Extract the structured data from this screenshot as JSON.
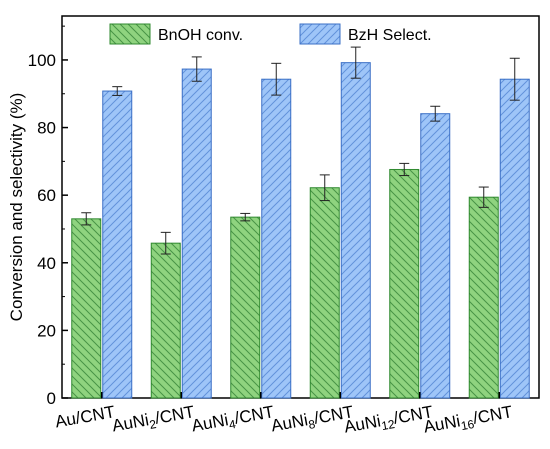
{
  "chart_data": {
    "type": "bar",
    "categories": [
      {
        "base": "Au",
        "sub": "",
        "suffix": "/CNT"
      },
      {
        "base": "AuNi",
        "sub": "2",
        "suffix": "/CNT"
      },
      {
        "base": "AuNi",
        "sub": "4",
        "suffix": "/CNT"
      },
      {
        "base": "AuNi",
        "sub": "8",
        "suffix": "/CNT"
      },
      {
        "base": "AuNi",
        "sub": "12",
        "suffix": "/CNT"
      },
      {
        "base": "AuNi",
        "sub": "16",
        "suffix": "/CNT"
      }
    ],
    "series": [
      {
        "name": "BnOH conv.",
        "color": "#8fd37f",
        "stroke": "#2f8a2f",
        "hatch": "backslash",
        "values": [
          53,
          45.8,
          53.5,
          62.2,
          67.6,
          59.4
        ],
        "errors": [
          1.8,
          3.2,
          1.1,
          3.8,
          1.8,
          3.0
        ]
      },
      {
        "name": "BzH Select.",
        "color": "#9ec5f8",
        "stroke": "#3a6fc6",
        "hatch": "slash",
        "values": [
          90.8,
          97.3,
          94.3,
          99.2,
          84.1,
          94.3
        ],
        "errors": [
          1.3,
          3.6,
          4.7,
          4.6,
          2.2,
          6.2
        ]
      }
    ],
    "ylabel": "Conversion and selectivity (%)",
    "xlabel": "",
    "ylim": [
      0,
      113
    ],
    "yticks": [
      0,
      20,
      40,
      60,
      80,
      100
    ],
    "grid": false,
    "legend_position": "top"
  }
}
